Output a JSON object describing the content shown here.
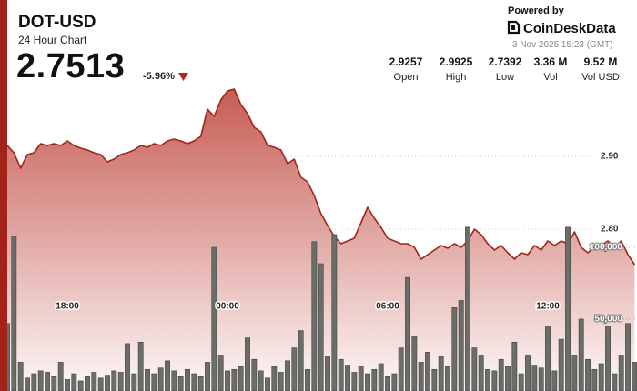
{
  "header": {
    "title": "DOT-USD",
    "subtitle": "24 Hour Chart",
    "price": "2.7513",
    "change": "-5.96%",
    "powered_by": "Powered by",
    "brand": "CoinDeskData",
    "timestamp": "3 Nov 2025 15:23 (GMT)",
    "stats": [
      {
        "value": "2.9257",
        "label": "Open"
      },
      {
        "value": "2.9925",
        "label": "High"
      },
      {
        "value": "2.7392",
        "label": "Low"
      },
      {
        "value": "3.36 M",
        "label": "Vol"
      },
      {
        "value": "9.52 M",
        "label": "Vol USD"
      }
    ]
  },
  "chart_data": {
    "type": "line",
    "x": [
      15.75,
      16,
      16.25,
      16.5,
      16.75,
      17,
      17.25,
      17.5,
      17.75,
      18,
      18.25,
      18.5,
      18.75,
      19,
      19.25,
      19.5,
      19.75,
      20,
      20.25,
      20.5,
      20.75,
      21,
      21.25,
      21.5,
      21.75,
      22,
      22.25,
      22.5,
      22.75,
      23,
      23.25,
      23.5,
      23.75,
      24,
      24.25,
      24.5,
      24.75,
      25,
      25.25,
      25.5,
      25.75,
      26,
      26.25,
      26.5,
      26.75,
      27,
      27.25,
      27.5,
      27.75,
      28,
      28.25,
      28.5,
      28.75,
      29,
      29.25,
      29.5,
      29.75,
      30,
      30.25,
      30.5,
      30.75,
      31,
      31.25,
      31.5,
      31.75,
      32,
      32.25,
      32.5,
      32.75,
      33,
      33.25,
      33.5,
      33.75,
      34,
      34.25,
      34.5,
      34.75,
      35,
      35.25,
      35.5,
      35.75,
      36,
      36.25,
      36.5,
      36.75,
      37,
      37.25,
      37.5,
      37.75,
      38,
      38.25,
      38.5,
      38.75,
      39,
      39.25
    ],
    "xlim": [
      15.75,
      39.34
    ],
    "xticks": [
      {
        "value": 18,
        "label": "18:00"
      },
      {
        "value": 24,
        "label": "00:00"
      },
      {
        "value": 30,
        "label": "06:00"
      },
      {
        "value": 36,
        "label": "12:00"
      }
    ],
    "ylim": [
      2.5775,
      3.015
    ],
    "yticks": [
      {
        "value": 2.8,
        "label": "2.80"
      },
      {
        "value": 2.9,
        "label": "2.90"
      }
    ],
    "y2lim": [
      0,
      221500
    ],
    "y2ticks": [
      {
        "value": 50000,
        "label": "50,000"
      },
      {
        "value": 100000,
        "label": "100,000"
      }
    ],
    "grid": true,
    "series": [
      {
        "color": "#a3231b",
        "area_color": "#c4544b",
        "values": [
          2.915,
          2.905,
          2.8838,
          2.9025,
          2.905,
          2.9175,
          2.915,
          2.9175,
          2.915,
          2.9213,
          2.915,
          2.9113,
          2.9088,
          2.905,
          2.9025,
          2.8925,
          2.8963,
          2.9025,
          2.905,
          2.9088,
          2.915,
          2.9125,
          2.9175,
          2.915,
          2.9213,
          2.9238,
          2.9213,
          2.9175,
          2.9213,
          2.9275,
          2.965,
          2.955,
          2.9775,
          2.99,
          2.9925,
          2.9713,
          2.9588,
          2.94,
          2.9338,
          2.915,
          2.9125,
          2.9088,
          2.89,
          2.8963,
          2.8713,
          2.865,
          2.8463,
          2.8213,
          2.805,
          2.79,
          2.78,
          2.7838,
          2.7875,
          2.8088,
          2.83,
          2.815,
          2.8025,
          2.7875,
          2.7838,
          2.78,
          2.78,
          2.775,
          2.7588,
          2.765,
          2.7713,
          2.7775,
          2.7738,
          2.78,
          2.775,
          2.7838,
          2.8,
          2.7925,
          2.78,
          2.7713,
          2.7775,
          2.7675,
          2.7588,
          2.7675,
          2.765,
          2.7775,
          2.7713,
          2.7838,
          2.7775,
          2.7838,
          2.78,
          2.7963,
          2.775,
          2.7675,
          2.775,
          2.7775,
          2.7838,
          2.775,
          2.7838,
          2.765,
          2.7513
        ]
      },
      {
        "type": "bar",
        "axis": "y2",
        "color": "#6b6d69",
        "values": [
          47000,
          107600,
          20000,
          9000,
          12000,
          14000,
          13000,
          10000,
          20000,
          8000,
          12000,
          7000,
          10000,
          13000,
          9000,
          11000,
          14000,
          13000,
          33000,
          12000,
          34000,
          15000,
          12000,
          16000,
          21000,
          14000,
          10000,
          15000,
          12000,
          10000,
          20000,
          100000,
          25000,
          14000,
          15000,
          17000,
          37000,
          22000,
          14000,
          9000,
          17000,
          13000,
          21000,
          30000,
          42000,
          15000,
          104000,
          88600,
          24000,
          108900,
          22000,
          18000,
          13000,
          17000,
          12000,
          15000,
          19000,
          10000,
          12000,
          30000,
          79000,
          38000,
          20000,
          27000,
          15000,
          24000,
          17000,
          58000,
          63000,
          114000,
          30000,
          25000,
          15000,
          14000,
          22000,
          17000,
          34000,
          12000,
          25000,
          18000,
          16000,
          45000,
          14000,
          36000,
          114000,
          25000,
          50000,
          22000,
          15000,
          19000,
          45000,
          12000,
          25000,
          47000,
          20000
        ]
      }
    ]
  }
}
